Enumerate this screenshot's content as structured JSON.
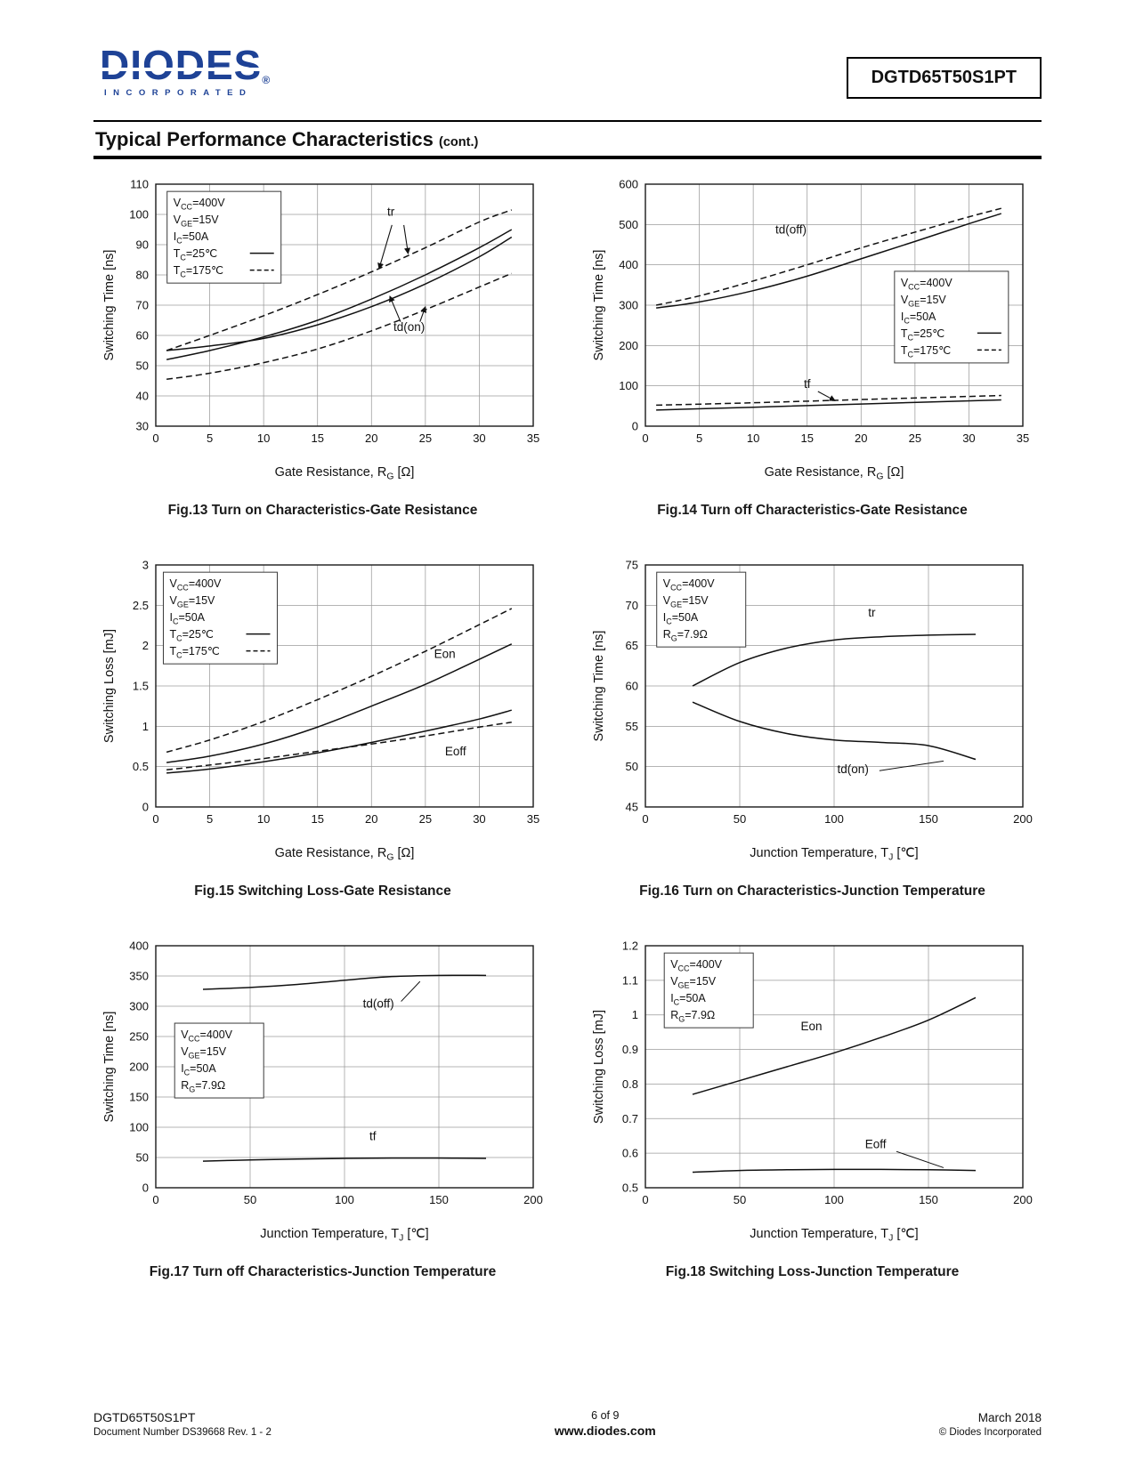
{
  "page": {
    "logo": {
      "brand": "DIODES",
      "reg": "®",
      "sub": "INCORPORATED"
    },
    "part_number": "DGTD65T50S1PT",
    "section_title": "Typical Performance Characteristics",
    "section_title_note": "(cont.)",
    "footer": {
      "part": "DGTD65T50S1PT",
      "doc": "Document Number DS39668 Rev. 1 - 2",
      "page_num": "6 of 9",
      "website": "www.diodes.com",
      "date": "March 2018",
      "copyright": "© Diodes Incorporated"
    },
    "accent_color": "#1e4296"
  },
  "chart_data": [
    {
      "id": "fig13",
      "type": "line",
      "caption": "Fig.13 Turn on Characteristics-Gate Resistance",
      "xlabel": "Gate Resistance, R~G~ [Ω]",
      "ylabel": "Switching Time [ns]",
      "xlim": [
        0,
        35
      ],
      "ylim": [
        30,
        110
      ],
      "xticks": [
        0,
        5,
        10,
        15,
        20,
        25,
        30,
        35
      ],
      "yticks": [
        30,
        40,
        50,
        60,
        70,
        80,
        90,
        100,
        110
      ],
      "grid": true,
      "conditions": {
        "fx": 0.03,
        "fy": 0.03,
        "lines": [
          {
            "t": "V~CC~=400V"
          },
          {
            "t": "V~GE~=15V"
          },
          {
            "t": "I~C~=50A"
          },
          {
            "t": "T~C~=25℃",
            "sample": "solid"
          },
          {
            "t": "T~C~=175℃",
            "sample": "dashed"
          }
        ]
      },
      "series": [
        {
          "name": "tr (Tc=25℃)",
          "dash": false,
          "points": [
            [
              1,
              52
            ],
            [
              5,
              55
            ],
            [
              10,
              59.5
            ],
            [
              15,
              65
            ],
            [
              20,
              72
            ],
            [
              25,
              80
            ],
            [
              30,
              89
            ],
            [
              33,
              95
            ]
          ]
        },
        {
          "name": "tr (Tc=175℃)",
          "dash": true,
          "points": [
            [
              1,
              55
            ],
            [
              5,
              60
            ],
            [
              10,
              66.5
            ],
            [
              15,
              73.5
            ],
            [
              20,
              81
            ],
            [
              25,
              89
            ],
            [
              30,
              97.5
            ],
            [
              33,
              101.5
            ]
          ]
        },
        {
          "name": "td(on) (Tc=25℃)",
          "dash": false,
          "points": [
            [
              1,
              55
            ],
            [
              5,
              56.5
            ],
            [
              10,
              59
            ],
            [
              15,
              63.5
            ],
            [
              20,
              69.5
            ],
            [
              25,
              77
            ],
            [
              30,
              86
            ],
            [
              33,
              92.5
            ]
          ]
        },
        {
          "name": "td(on) (Tc=175℃)",
          "dash": true,
          "points": [
            [
              1,
              45.5
            ],
            [
              5,
              47.5
            ],
            [
              10,
              51
            ],
            [
              15,
              55.5
            ],
            [
              20,
              61.5
            ],
            [
              25,
              68.5
            ],
            [
              30,
              76
            ],
            [
              33,
              80.5
            ]
          ]
        }
      ],
      "labels": [
        {
          "t": "tr",
          "x": 21.8,
          "y": 99.5
        },
        {
          "t": "td(on)",
          "x": 23.5,
          "y": 61.5
        }
      ],
      "arrows": [
        {
          "from": [
            21.9,
            96.5
          ],
          "to": [
            20.7,
            82
          ]
        },
        {
          "from": [
            23.0,
            96.5
          ],
          "to": [
            23.4,
            87
          ]
        },
        {
          "from": [
            22.7,
            64.5
          ],
          "to": [
            21.7,
            73
          ]
        },
        {
          "from": [
            24.5,
            64.5
          ],
          "to": [
            25.0,
            69.5
          ]
        }
      ]
    },
    {
      "id": "fig14",
      "type": "line",
      "caption": "Fig.14 Turn off Characteristics-Gate Resistance",
      "xlabel": "Gate Resistance, R~G~ [Ω]",
      "ylabel": "Switching Time [ns]",
      "xlim": [
        0,
        35
      ],
      "ylim": [
        0,
        600
      ],
      "xticks": [
        0,
        5,
        10,
        15,
        20,
        25,
        30,
        35
      ],
      "yticks": [
        0,
        100,
        200,
        300,
        400,
        500,
        600
      ],
      "grid": true,
      "conditions": {
        "fx": 0.66,
        "fy": 0.36,
        "lines": [
          {
            "t": "V~CC~=400V"
          },
          {
            "t": "V~GE~=15V"
          },
          {
            "t": "I~C~=50A"
          },
          {
            "t": "T~C~=25℃",
            "sample": "solid"
          },
          {
            "t": "T~C~=175℃",
            "sample": "dashed"
          }
        ]
      },
      "series": [
        {
          "name": "td(off) (Tc=25℃)",
          "dash": false,
          "points": [
            [
              1,
              293
            ],
            [
              5,
              308
            ],
            [
              10,
              336
            ],
            [
              15,
              372
            ],
            [
              20,
              415
            ],
            [
              25,
              458
            ],
            [
              30,
              502
            ],
            [
              33,
              527
            ]
          ]
        },
        {
          "name": "td(off) (Tc=175℃)",
          "dash": true,
          "points": [
            [
              1,
              300
            ],
            [
              5,
              323
            ],
            [
              10,
              360
            ],
            [
              15,
              400
            ],
            [
              20,
              442
            ],
            [
              25,
              481
            ],
            [
              30,
              519
            ],
            [
              33,
              540
            ]
          ]
        },
        {
          "name": "tf (Tc=25℃)",
          "dash": false,
          "points": [
            [
              1,
              40
            ],
            [
              10,
              47
            ],
            [
              20,
              55
            ],
            [
              33,
              65
            ]
          ]
        },
        {
          "name": "tf (Tc=175℃)",
          "dash": true,
          "points": [
            [
              1,
              52
            ],
            [
              10,
              58
            ],
            [
              20,
              66
            ],
            [
              33,
              76
            ]
          ]
        }
      ],
      "labels": [
        {
          "t": "td(off)",
          "x": 13.5,
          "y": 478
        },
        {
          "t": "tf",
          "x": 15,
          "y": 95
        }
      ],
      "arrows": [
        {
          "from": [
            16.0,
            86
          ],
          "to": [
            17.6,
            63
          ]
        }
      ]
    },
    {
      "id": "fig15",
      "type": "line",
      "caption": "Fig.15 Switching Loss-Gate Resistance",
      "xlabel": "Gate Resistance, R~G~ [Ω]",
      "ylabel": "Switching Loss [mJ]",
      "xlim": [
        0,
        35
      ],
      "ylim": [
        0,
        3
      ],
      "xticks": [
        0,
        5,
        10,
        15,
        20,
        25,
        30,
        35
      ],
      "yticks": [
        0,
        0.5,
        1,
        1.5,
        2,
        2.5,
        3
      ],
      "grid": true,
      "conditions": {
        "fx": 0.02,
        "fy": 0.03,
        "lines": [
          {
            "t": "V~CC~=400V"
          },
          {
            "t": "V~GE~=15V"
          },
          {
            "t": "I~C~=50A"
          },
          {
            "t": "T~C~=25℃",
            "sample": "solid"
          },
          {
            "t": "T~C~=175℃",
            "sample": "dashed"
          }
        ]
      },
      "series": [
        {
          "name": "Eon (Tc=25℃)",
          "dash": false,
          "points": [
            [
              1,
              0.55
            ],
            [
              5,
              0.63
            ],
            [
              10,
              0.78
            ],
            [
              15,
              0.99
            ],
            [
              20,
              1.25
            ],
            [
              25,
              1.52
            ],
            [
              30,
              1.83
            ],
            [
              33,
              2.02
            ]
          ]
        },
        {
          "name": "Eon (Tc=175℃)",
          "dash": true,
          "points": [
            [
              1,
              0.68
            ],
            [
              5,
              0.83
            ],
            [
              10,
              1.06
            ],
            [
              15,
              1.33
            ],
            [
              20,
              1.62
            ],
            [
              25,
              1.93
            ],
            [
              30,
              2.26
            ],
            [
              33,
              2.46
            ]
          ]
        },
        {
          "name": "Eoff (Tc=25℃)",
          "dash": false,
          "points": [
            [
              1,
              0.42
            ],
            [
              5,
              0.47
            ],
            [
              10,
              0.56
            ],
            [
              15,
              0.67
            ],
            [
              20,
              0.8
            ],
            [
              25,
              0.94
            ],
            [
              30,
              1.09
            ],
            [
              33,
              1.2
            ]
          ]
        },
        {
          "name": "Eoff (Tc=175℃)",
          "dash": true,
          "points": [
            [
              1,
              0.46
            ],
            [
              5,
              0.52
            ],
            [
              10,
              0.6
            ],
            [
              15,
              0.69
            ],
            [
              20,
              0.78
            ],
            [
              25,
              0.88
            ],
            [
              30,
              0.99
            ],
            [
              33,
              1.05
            ]
          ]
        }
      ],
      "labels": [
        {
          "t": "Eon",
          "x": 26.8,
          "y": 1.85
        },
        {
          "t": "Eoff",
          "x": 27.8,
          "y": 0.64
        }
      ]
    },
    {
      "id": "fig16",
      "type": "line",
      "caption": "Fig.16 Turn on Characteristics-Junction Temperature",
      "xlabel": "Junction Temperature, T~J~ [℃]",
      "ylabel": "Switching Time [ns]",
      "xlim": [
        0,
        200
      ],
      "ylim": [
        45,
        75
      ],
      "xticks": [
        0,
        50,
        100,
        150,
        200
      ],
      "yticks": [
        45,
        50,
        55,
        60,
        65,
        70,
        75
      ],
      "grid": true,
      "conditions": {
        "fx": 0.03,
        "fy": 0.03,
        "lines": [
          {
            "t": "V~CC~=400V"
          },
          {
            "t": "V~GE~=15V"
          },
          {
            "t": "I~C~=50A"
          },
          {
            "t": "R~G~=7.9Ω"
          }
        ]
      },
      "series": [
        {
          "name": "tr",
          "dash": false,
          "points": [
            [
              25,
              60
            ],
            [
              50,
              62.9
            ],
            [
              75,
              64.7
            ],
            [
              100,
              65.7
            ],
            [
              125,
              66.1
            ],
            [
              150,
              66.3
            ],
            [
              175,
              66.4
            ]
          ]
        },
        {
          "name": "td(on)",
          "dash": false,
          "points": [
            [
              25,
              58
            ],
            [
              50,
              55.6
            ],
            [
              75,
              54.1
            ],
            [
              100,
              53.3
            ],
            [
              125,
              53
            ],
            [
              150,
              52.6
            ],
            [
              175,
              50.9
            ]
          ]
        }
      ],
      "labels": [
        {
          "t": "tr",
          "x": 120,
          "y": 68.6
        },
        {
          "t": "td(on)",
          "x": 110,
          "y": 49.2
        }
      ],
      "leaders": [
        {
          "from": [
            124,
            49.5
          ],
          "to": [
            158,
            50.7
          ]
        }
      ]
    },
    {
      "id": "fig17",
      "type": "line",
      "caption": "Fig.17 Turn off Characteristics-Junction Temperature",
      "xlabel": "Junction Temperature, T~J~ [℃]",
      "ylabel": "Switching Time [ns]",
      "xlim": [
        0,
        200
      ],
      "ylim": [
        0,
        400
      ],
      "xticks": [
        0,
        50,
        100,
        150,
        200
      ],
      "yticks": [
        0,
        50,
        100,
        150,
        200,
        250,
        300,
        350,
        400
      ],
      "grid": true,
      "conditions": {
        "fx": 0.05,
        "fy": 0.32,
        "lines": [
          {
            "t": "V~CC~=400V"
          },
          {
            "t": "V~GE~=15V"
          },
          {
            "t": "I~C~=50A"
          },
          {
            "t": "R~G~=7.9Ω"
          }
        ]
      },
      "series": [
        {
          "name": "td(off)",
          "dash": false,
          "points": [
            [
              25,
              328
            ],
            [
              50,
              331
            ],
            [
              75,
              336
            ],
            [
              100,
              343
            ],
            [
              125,
              349
            ],
            [
              150,
              351
            ],
            [
              175,
              351
            ]
          ]
        },
        {
          "name": "tf",
          "dash": false,
          "points": [
            [
              25,
              44
            ],
            [
              50,
              46
            ],
            [
              75,
              47.5
            ],
            [
              100,
              48.5
            ],
            [
              125,
              49
            ],
            [
              150,
              49
            ],
            [
              175,
              48.5
            ]
          ]
        }
      ],
      "labels": [
        {
          "t": "td(off)",
          "x": 118,
          "y": 298
        },
        {
          "t": "tf",
          "x": 115,
          "y": 79
        }
      ],
      "leaders": [
        {
          "from": [
            130,
            308
          ],
          "to": [
            140,
            341
          ]
        }
      ]
    },
    {
      "id": "fig18",
      "type": "line",
      "caption": "Fig.18 Switching Loss-Junction Temperature",
      "xlabel": "Junction Temperature, T~J~ [℃]",
      "ylabel": "Switching Loss [mJ]",
      "xlim": [
        0,
        200
      ],
      "ylim": [
        0.5,
        1.2
      ],
      "xticks": [
        0,
        50,
        100,
        150,
        200
      ],
      "yticks": [
        0.5,
        0.6,
        0.7,
        0.8,
        0.9,
        1,
        1.1,
        1.2
      ],
      "grid": true,
      "conditions": {
        "fx": 0.05,
        "fy": 0.03,
        "lines": [
          {
            "t": "V~CC~=400V"
          },
          {
            "t": "V~GE~=15V"
          },
          {
            "t": "I~C~=50A"
          },
          {
            "t": "R~G~=7.9Ω"
          }
        ]
      },
      "series": [
        {
          "name": "Eon",
          "dash": false,
          "points": [
            [
              25,
              0.77
            ],
            [
              50,
              0.81
            ],
            [
              75,
              0.85
            ],
            [
              100,
              0.89
            ],
            [
              125,
              0.935
            ],
            [
              150,
              0.985
            ],
            [
              175,
              1.05
            ]
          ]
        },
        {
          "name": "Eoff",
          "dash": false,
          "points": [
            [
              25,
              0.545
            ],
            [
              50,
              0.55
            ],
            [
              75,
              0.552
            ],
            [
              100,
              0.553
            ],
            [
              125,
              0.553
            ],
            [
              150,
              0.552
            ],
            [
              175,
              0.55
            ]
          ]
        }
      ],
      "labels": [
        {
          "t": "Eon",
          "x": 88,
          "y": 0.955
        },
        {
          "t": "Eoff",
          "x": 122,
          "y": 0.615
        }
      ],
      "leaders": [
        {
          "from": [
            133,
            0.605
          ],
          "to": [
            158,
            0.558
          ]
        }
      ]
    }
  ]
}
